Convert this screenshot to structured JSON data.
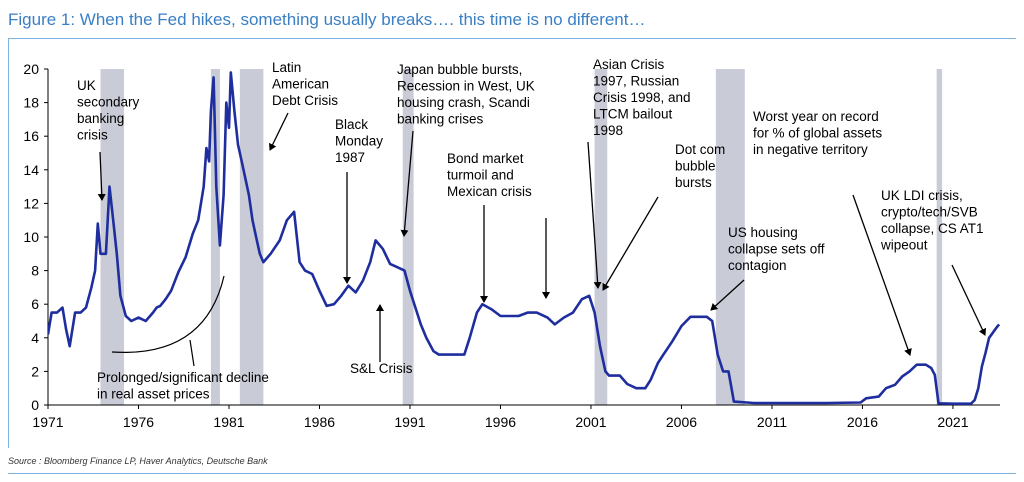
{
  "title": "Figure 1: When the Fed hikes, something usually breaks…. this time is no different…",
  "source": "Source : Bloomberg Finance LP, Haver Analytics, Deutsche Bank",
  "colors": {
    "line": "#1f2e9e",
    "recession": "#c9cbd6",
    "title": "#3a7fc4",
    "rule": "#7fb3e0"
  },
  "chart_data": {
    "type": "line",
    "title": "Figure 1: When the Fed hikes, something usually breaks…. this time is no different…",
    "xlabel": "",
    "ylabel": "",
    "xlim": [
      1971,
      2023.6
    ],
    "ylim": [
      0,
      20
    ],
    "grid": false,
    "x_ticks": [
      1971,
      1976,
      1981,
      1986,
      1991,
      1996,
      2001,
      2006,
      2011,
      2016,
      2021
    ],
    "x_tick_labels": [
      "1971",
      "1976",
      "1981",
      "1986",
      "1991",
      "1996",
      "2001",
      "2006",
      "2011",
      "2016",
      "2021"
    ],
    "y_ticks": [
      0,
      2,
      4,
      6,
      8,
      10,
      12,
      14,
      16,
      18,
      20
    ],
    "y_tick_labels": [
      "0",
      "2",
      "4",
      "6",
      "8",
      "10",
      "12",
      "14",
      "16",
      "18",
      "20"
    ],
    "recession_bands": [
      [
        1973.9,
        1975.2
      ],
      [
        1980.0,
        1980.5
      ],
      [
        1981.6,
        1982.9
      ],
      [
        1990.6,
        1991.2
      ],
      [
        2001.2,
        2001.9
      ],
      [
        2007.9,
        2009.5
      ],
      [
        2020.1,
        2020.4
      ]
    ],
    "series": [
      {
        "x": [
          1971.0,
          1971.2,
          1971.5,
          1971.8,
          1972.0,
          1972.2,
          1972.5,
          1972.8,
          1973.1,
          1973.4,
          1973.6,
          1973.75,
          1973.9,
          1974.2,
          1974.4,
          1974.6,
          1974.8,
          1975.0,
          1975.3,
          1975.6,
          1976.0,
          1976.4,
          1976.8,
          1977.0,
          1977.2,
          1977.5,
          1977.8,
          1978.2,
          1978.6,
          1979.0,
          1979.3,
          1979.6,
          1979.75,
          1979.9,
          1980.0,
          1980.15,
          1980.3,
          1980.5,
          1980.7,
          1980.85,
          1981.0,
          1981.1,
          1981.3,
          1981.5,
          1981.7,
          1981.9,
          1982.1,
          1982.3,
          1982.5,
          1982.7,
          1982.9,
          1983.3,
          1983.8,
          1984.2,
          1984.6,
          1984.9,
          1985.2,
          1985.6,
          1986.0,
          1986.4,
          1986.8,
          1987.2,
          1987.6,
          1988.0,
          1988.4,
          1988.8,
          1989.1,
          1989.5,
          1989.9,
          1990.3,
          1990.7,
          1991.0,
          1991.3,
          1991.6,
          1991.9,
          1992.3,
          1992.6,
          1993.0,
          1993.5,
          1994.0,
          1994.3,
          1994.7,
          1995.0,
          1995.5,
          1996.0,
          1996.5,
          1997.0,
          1997.5,
          1998.0,
          1998.6,
          1999.0,
          1999.5,
          2000.0,
          2000.5,
          2000.9,
          2001.2,
          2001.5,
          2001.8,
          2002.0,
          2002.6,
          2003.0,
          2003.5,
          2004.0,
          2004.3,
          2004.7,
          2005.0,
          2005.5,
          2006.0,
          2006.5,
          2007.0,
          2007.4,
          2007.7,
          2008.0,
          2008.3,
          2008.6,
          2008.9,
          2010.0,
          2012.0,
          2014.0,
          2015.9,
          2016.2,
          2016.9,
          2017.3,
          2017.8,
          2018.2,
          2018.6,
          2019.0,
          2019.5,
          2019.8,
          2020.0,
          2020.2,
          2021.0,
          2022.0,
          2022.2,
          2022.4,
          2022.6,
          2022.8,
          2023.0,
          2023.2,
          2023.4,
          2023.55
        ],
        "values": [
          4.2,
          5.5,
          5.5,
          5.8,
          4.5,
          3.5,
          5.5,
          5.5,
          5.8,
          7.0,
          8.0,
          10.8,
          9.0,
          9.0,
          13.0,
          11.0,
          9.0,
          6.5,
          5.3,
          5.0,
          5.2,
          5.0,
          5.5,
          5.8,
          5.9,
          6.3,
          6.8,
          7.9,
          8.8,
          10.2,
          11.0,
          13.0,
          15.3,
          14.5,
          17.5,
          19.5,
          13.0,
          9.5,
          12.5,
          18.0,
          16.5,
          19.8,
          17.5,
          15.5,
          14.5,
          13.5,
          12.5,
          11.0,
          10.0,
          9.0,
          8.5,
          9.0,
          9.8,
          11.0,
          11.5,
          8.5,
          8.0,
          7.8,
          6.8,
          5.9,
          6.0,
          6.5,
          7.1,
          6.7,
          7.4,
          8.5,
          9.8,
          9.3,
          8.4,
          8.2,
          8.0,
          6.8,
          5.8,
          4.8,
          4.0,
          3.2,
          3.0,
          3.0,
          3.0,
          3.0,
          4.0,
          5.5,
          6.0,
          5.7,
          5.3,
          5.3,
          5.3,
          5.5,
          5.5,
          5.2,
          4.8,
          5.2,
          5.5,
          6.3,
          6.5,
          5.5,
          3.5,
          2.0,
          1.75,
          1.75,
          1.25,
          1.0,
          1.0,
          1.5,
          2.5,
          3.0,
          3.8,
          4.7,
          5.25,
          5.25,
          5.25,
          5.0,
          3.0,
          2.0,
          2.0,
          0.2,
          0.12,
          0.12,
          0.12,
          0.15,
          0.4,
          0.5,
          1.0,
          1.2,
          1.7,
          2.0,
          2.4,
          2.4,
          2.2,
          1.8,
          0.1,
          0.08,
          0.08,
          0.3,
          1.0,
          2.3,
          3.1,
          4.0,
          4.3,
          4.6,
          4.8
        ]
      }
    ],
    "annotations": [
      {
        "lines": [
          "UK",
          "secondary",
          "banking",
          "crisis"
        ]
      },
      {
        "lines": [
          "Latin",
          "American",
          "Debt Crisis"
        ]
      },
      {
        "lines": [
          "Black",
          "Monday",
          "1987"
        ]
      },
      {
        "lines": [
          "Japan bubble bursts,",
          "Recession in West, UK",
          "housing crash, Scandi",
          "banking crises"
        ]
      },
      {
        "lines": [
          "Bond market",
          "turmoil and",
          "Mexican crisis"
        ]
      },
      {
        "lines": [
          "Asian Crisis",
          "1997, Russian",
          "Crisis 1998, and",
          "LTCM bailout",
          "1998"
        ]
      },
      {
        "lines": [
          "Dot com",
          "bubble",
          "bursts"
        ]
      },
      {
        "lines": [
          "Worst year on record",
          "for % of global assets",
          "in negative territory"
        ]
      },
      {
        "lines": [
          "US housing",
          "collapse sets off",
          "contagion"
        ]
      },
      {
        "lines": [
          "UK LDI crisis,",
          "crypto/tech/SVB",
          "collapse, CS AT1",
          "wipeout"
        ]
      },
      {
        "lines": [
          "S&L Crisis"
        ]
      },
      {
        "lines": [
          "Prolonged/significant decline",
          "in real asset prices"
        ]
      }
    ]
  }
}
